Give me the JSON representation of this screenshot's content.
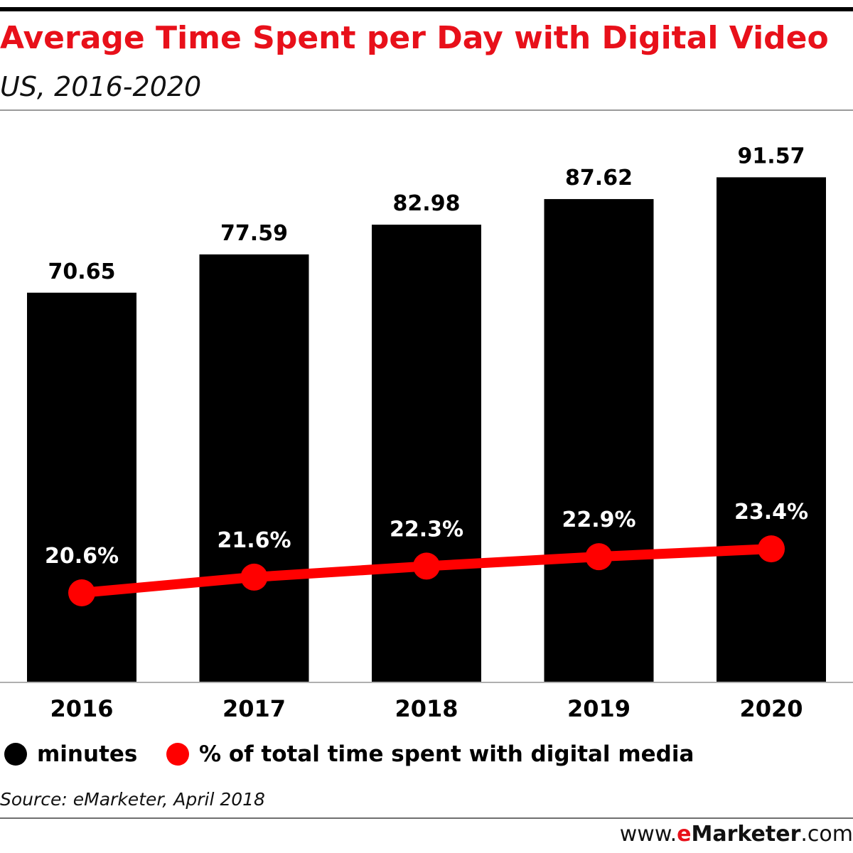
{
  "header": {
    "title": "Average Time Spent per Day with Digital Video",
    "subtitle": "US, 2016-2020"
  },
  "chart_data": {
    "type": "bar",
    "categories": [
      "2016",
      "2017",
      "2018",
      "2019",
      "2020"
    ],
    "series": [
      {
        "name": "minutes",
        "type": "bar",
        "values": [
          70.65,
          77.59,
          82.98,
          87.62,
          91.57
        ],
        "labels": [
          "70.65",
          "77.59",
          "82.98",
          "87.62",
          "91.57"
        ],
        "color": "#000000"
      },
      {
        "name": "% of total time spent with digital media",
        "type": "line",
        "values": [
          20.6,
          21.6,
          22.3,
          22.9,
          23.4
        ],
        "labels": [
          "20.6%",
          "21.6%",
          "22.3%",
          "22.9%",
          "23.4%"
        ],
        "color": "#ff0000"
      }
    ],
    "title": "Average Time Spent per Day with Digital Video",
    "subtitle": "US, 2016-2020",
    "xlabel": "",
    "ylabel": "",
    "ylim": [
      0,
      100
    ],
    "grid": false,
    "legend_placement": "bottom-left"
  },
  "legend": {
    "minutes_label": "minutes",
    "pct_label": "% of total time spent with digital media"
  },
  "footer": {
    "source": "Source: eMarketer, April 2018",
    "brand_prefix": "www.",
    "brand_e": "e",
    "brand_name": "Marketer",
    "brand_suffix": ".com"
  },
  "colors": {
    "accent": "#e8101a",
    "bar": "#000000",
    "line": "#ff0000"
  }
}
